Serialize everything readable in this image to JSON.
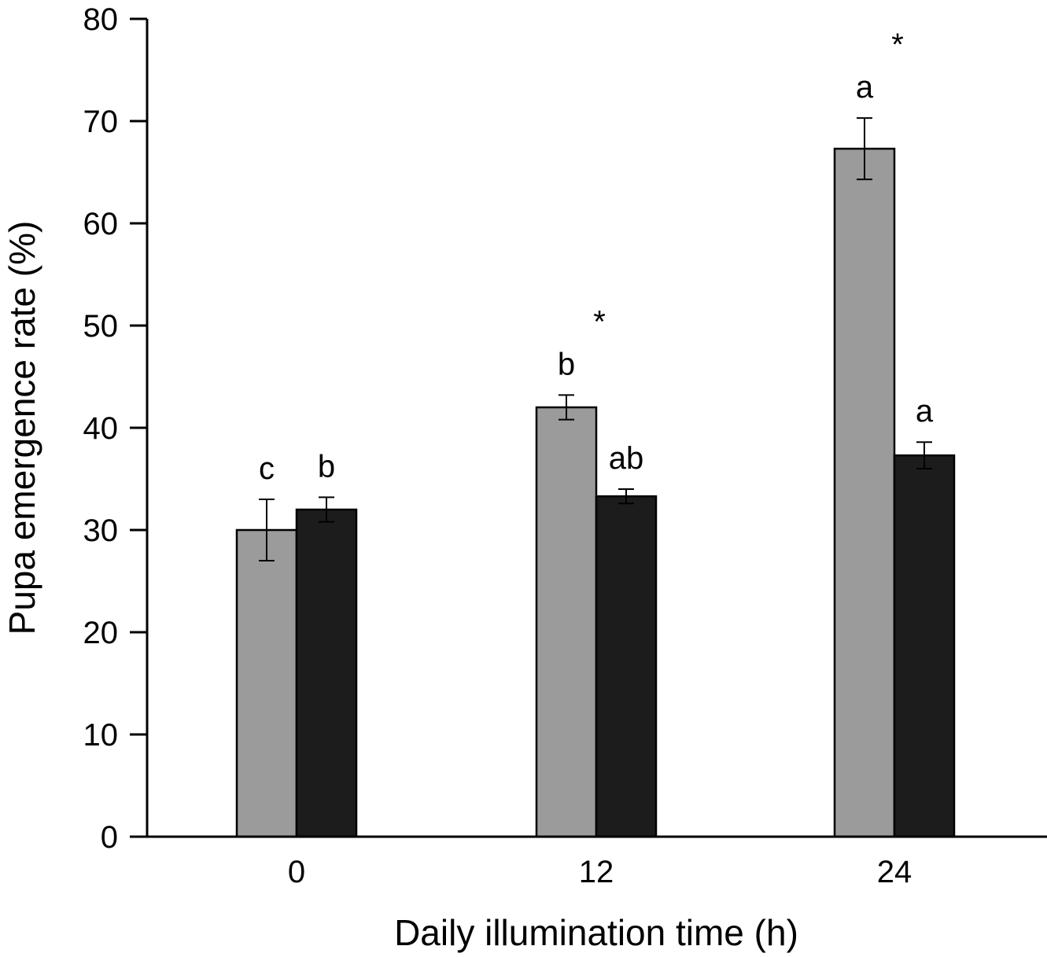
{
  "chart_data": {
    "type": "bar",
    "title": "",
    "xlabel": "Daily illumination time (h)",
    "ylabel": "Pupa emergence rate (%)",
    "ylim": [
      0,
      80
    ],
    "yticks": [
      "0",
      "10",
      "20",
      "30",
      "40",
      "50",
      "60",
      "70",
      "80"
    ],
    "categories": [
      "0",
      "12",
      "24"
    ],
    "series": [
      {
        "color": "#9b9b9b",
        "values": [
          30,
          42,
          67.3
        ],
        "errors": [
          3,
          1.2,
          3
        ],
        "letters": [
          "c",
          "b",
          "a"
        ]
      },
      {
        "color": "#1c1c1c",
        "values": [
          32,
          33.3,
          37.3
        ],
        "errors": [
          1.2,
          0.7,
          1.3
        ],
        "letters": [
          "b",
          "ab",
          "a"
        ]
      }
    ],
    "significance": [
      "",
      "*",
      "*"
    ],
    "grid": false,
    "legend": "none"
  }
}
